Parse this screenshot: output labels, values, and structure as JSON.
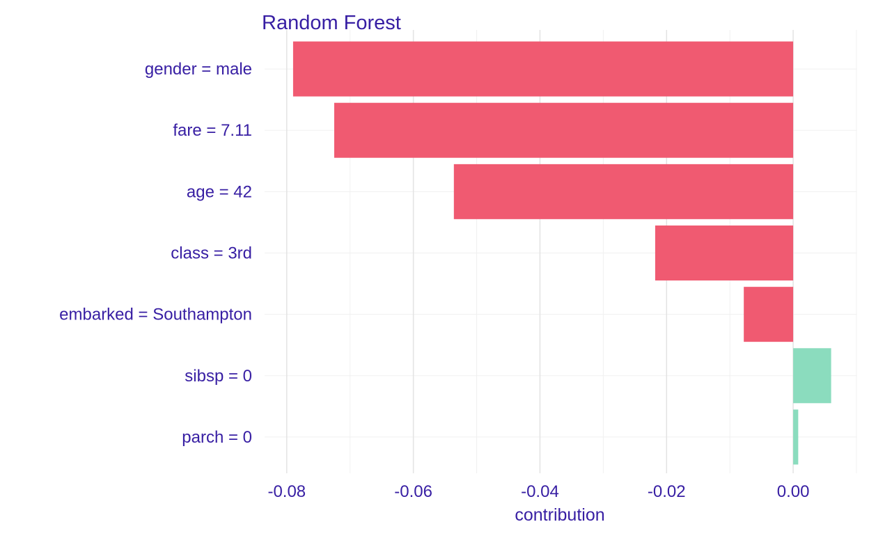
{
  "chart_data": {
    "type": "bar",
    "orientation": "horizontal",
    "title": "Random Forest",
    "xlabel": "contribution",
    "ylabel": "",
    "categories": [
      "gender = male",
      "fare = 7.11",
      "age = 42",
      "class = 3rd",
      "embarked = Southampton",
      "sibsp = 0",
      "parch = 0"
    ],
    "values": [
      -0.079,
      -0.0725,
      -0.0536,
      -0.0218,
      -0.0078,
      0.006,
      0.0008
    ],
    "xlim": [
      -0.0835,
      0.01
    ],
    "xticks": [
      -0.08,
      -0.06,
      -0.04,
      -0.02,
      0.0
    ],
    "xtick_labels": [
      "-0.08",
      "-0.06",
      "-0.04",
      "-0.02",
      "0.00"
    ],
    "grid": true,
    "legend": "none",
    "colors": {
      "negative": "#f05a71",
      "positive": "#8bdcbe",
      "text": "#371ea3",
      "grid_major": "#e3e3e3",
      "grid_minor": "#f0f0f0"
    }
  }
}
